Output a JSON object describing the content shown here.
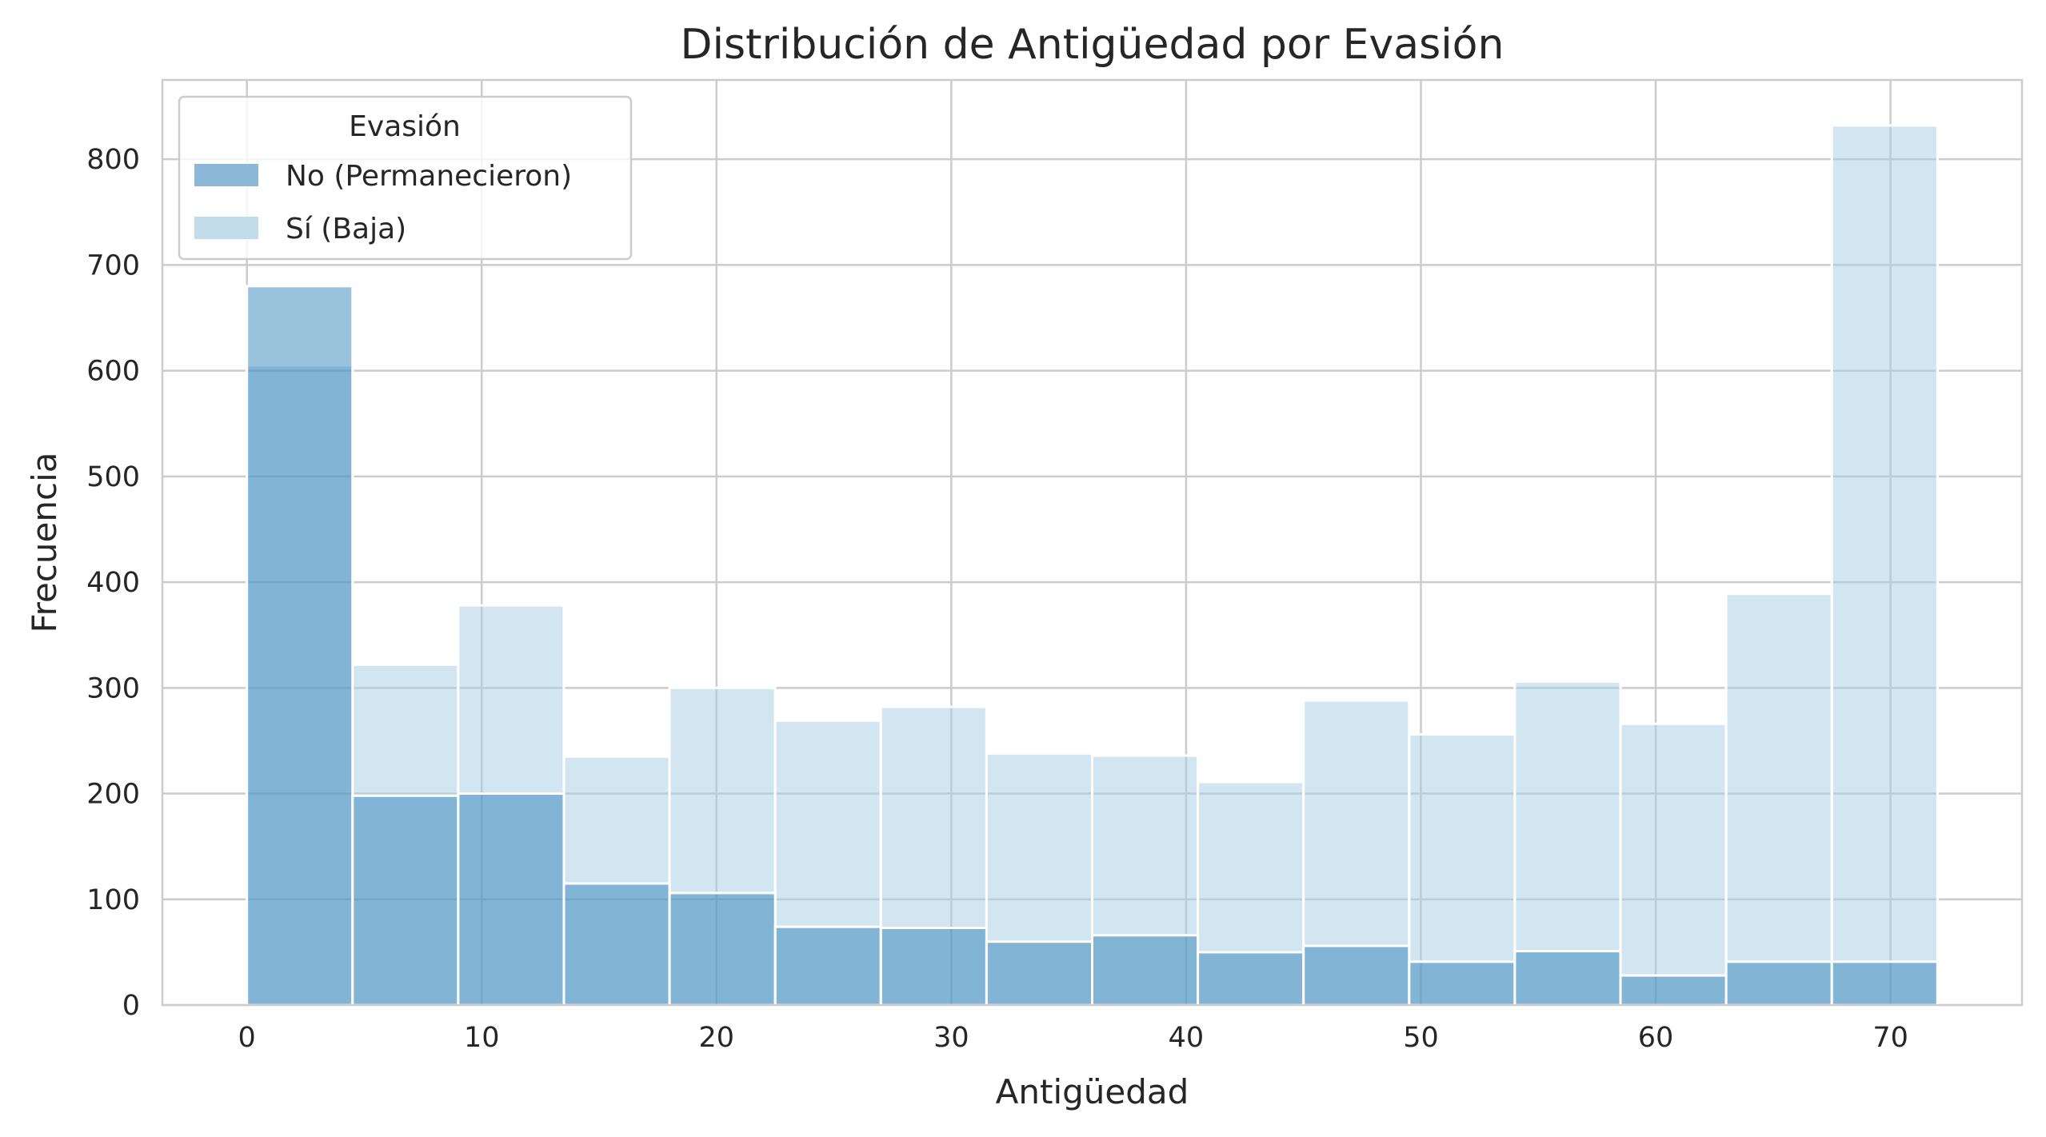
{
  "chart_data": {
    "type": "bar",
    "title": "Distribución de Antigüedad por Evasión",
    "xlabel": "Antigüedad",
    "ylabel": "Frecuencia",
    "xlim": [
      -3.6,
      75.6
    ],
    "ylim": [
      0,
      875
    ],
    "xticks": [
      0,
      10,
      20,
      30,
      40,
      50,
      60,
      70
    ],
    "yticks": [
      0,
      100,
      200,
      300,
      400,
      500,
      600,
      700,
      800
    ],
    "bin_start": 0,
    "bin_width": 4.5,
    "grid": true,
    "legend": {
      "title": "Evasión",
      "placement": "top-left"
    },
    "series": [
      {
        "name": "No (Permanecieron)",
        "color": "#8cb8d8",
        "values": [
          680,
          198,
          200,
          115,
          106,
          74,
          73,
          60,
          66,
          50,
          56,
          41,
          51,
          28,
          41,
          41
        ]
      },
      {
        "name": "Sí (Baja)",
        "color": "#c2dce9",
        "values": [
          605,
          322,
          378,
          235,
          300,
          269,
          282,
          238,
          236,
          211,
          288,
          256,
          306,
          266,
          389,
          832
        ]
      }
    ],
    "colors": {
      "overlap": "#9dc3dc",
      "grid": "#cccccc",
      "axes": "#cccccc",
      "background": "#ffffff"
    }
  }
}
